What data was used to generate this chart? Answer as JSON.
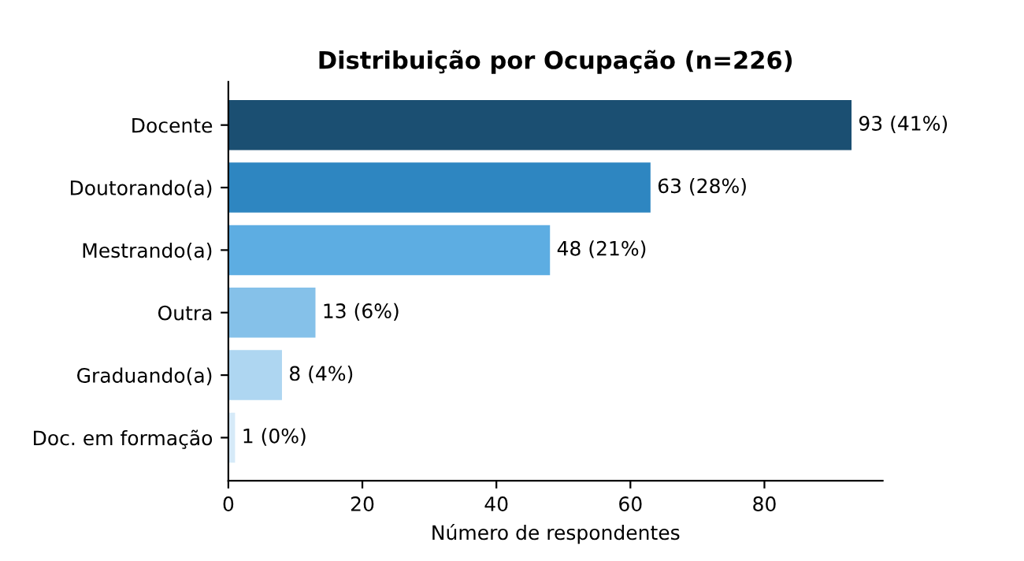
{
  "chart_data": {
    "type": "bar",
    "orientation": "horizontal",
    "title": "Distribuição por Ocupação (n=226)",
    "xlabel": "Número de respondentes",
    "categories": [
      "Docente",
      "Doutorando(a)",
      "Mestrando(a)",
      "Outra",
      "Graduando(a)",
      "Doc. em formação"
    ],
    "values": [
      93,
      63,
      48,
      13,
      8,
      1
    ],
    "colors": [
      "#1b4f72",
      "#2e86c1",
      "#5dade2",
      "#85c1e9",
      "#aed6f1",
      "#d6eaf8"
    ],
    "value_labels": [
      "93 (41%)",
      "63 (28%)",
      "48 (21%)",
      "13 (6%)",
      "8 (4%)",
      "1 (0%)"
    ],
    "xlim": [
      0,
      97.65
    ],
    "xticks": [
      0,
      20,
      40,
      60,
      80
    ],
    "grid": false
  }
}
